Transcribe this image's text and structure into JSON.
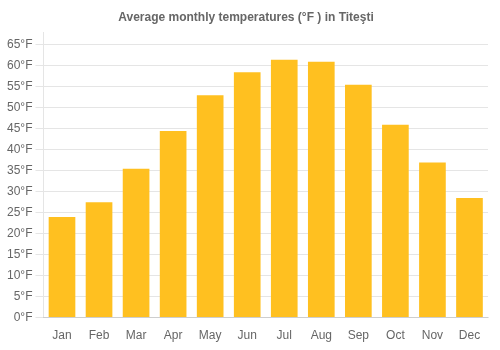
{
  "chart_data": {
    "type": "bar",
    "title": "Average monthly temperatures (°F ) in Titeşti",
    "categories": [
      "Jan",
      "Feb",
      "Mar",
      "Apr",
      "May",
      "Jun",
      "Jul",
      "Aug",
      "Sep",
      "Oct",
      "Nov",
      "Dec"
    ],
    "values": [
      24,
      27.5,
      35.5,
      44.5,
      53,
      58.5,
      61.5,
      61,
      55.5,
      46,
      37,
      28.5
    ],
    "color": "#FFC020",
    "ylim": [
      0,
      68
    ],
    "yticks": [
      {
        "value": 0,
        "label": "0°F"
      },
      {
        "value": 5,
        "label": "5°F"
      },
      {
        "value": 10,
        "label": "10°F"
      },
      {
        "value": 15,
        "label": "15°F"
      },
      {
        "value": 20,
        "label": "20°F"
      },
      {
        "value": 25,
        "label": "25°F"
      },
      {
        "value": 30,
        "label": "30°F"
      },
      {
        "value": 35,
        "label": "35°F"
      },
      {
        "value": 40,
        "label": "40°F"
      },
      {
        "value": 45,
        "label": "45°F"
      },
      {
        "value": 50,
        "label": "50°F"
      },
      {
        "value": 55,
        "label": "55°F"
      },
      {
        "value": 60,
        "label": "60°F"
      },
      {
        "value": 65,
        "label": "65°F"
      }
    ],
    "grid": true
  }
}
